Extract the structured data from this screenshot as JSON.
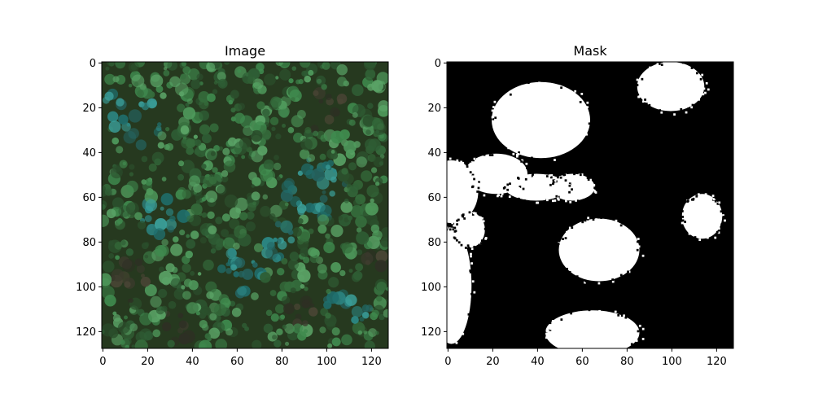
{
  "panels": [
    {
      "title": "Image",
      "xticks": [
        "0",
        "20",
        "40",
        "60",
        "80",
        "100",
        "120"
      ],
      "yticks": [
        "0",
        "20",
        "40",
        "60",
        "80",
        "100",
        "120"
      ]
    },
    {
      "title": "Mask",
      "xticks": [
        "0",
        "20",
        "40",
        "60",
        "80",
        "100",
        "120"
      ],
      "yticks": [
        "0",
        "20",
        "40",
        "60",
        "80",
        "100",
        "120"
      ]
    }
  ],
  "colors": {
    "forest_base": "#26391f",
    "tree_green": "#3f8a4e",
    "tree_teal": "#2c8a88",
    "mask_fg": "#ffffff",
    "mask_bg": "#000000"
  }
}
